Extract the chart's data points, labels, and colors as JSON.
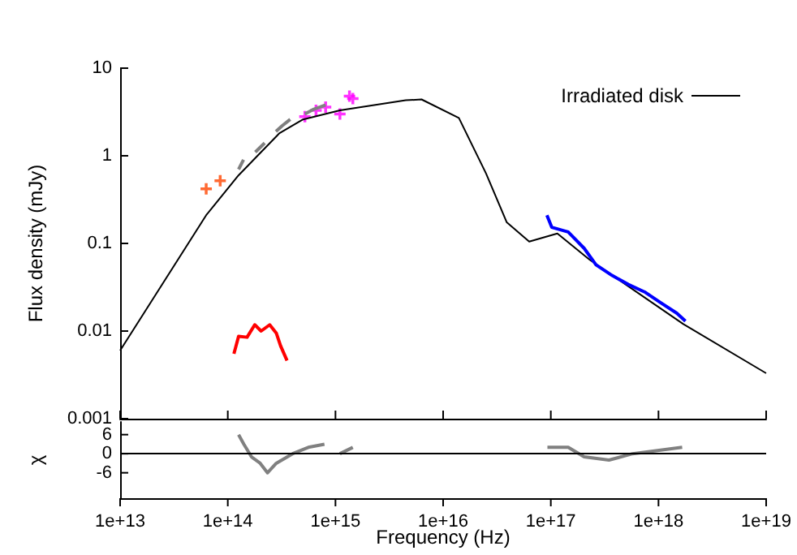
{
  "chart_data": [
    {
      "type": "line",
      "ylabel": "Flux density (mJy)",
      "log": "xy",
      "legend": "top right",
      "grid": false,
      "tick_labels": "y",
      "xlim": [
        10000000000000.0,
        1e+19
      ],
      "xticks": [
        {
          "value": 10000000000000.0,
          "label": null
        },
        {
          "value": 100000000000000.0,
          "label": null
        },
        {
          "value": 1000000000000000.0,
          "label": null
        },
        {
          "value": 1e+16,
          "label": null
        },
        {
          "value": 1e+17,
          "label": null
        },
        {
          "value": 1e+18,
          "label": null
        },
        {
          "value": 1e+19,
          "label": null
        }
      ],
      "ylim": [
        0.001,
        10
      ],
      "yticks": [
        0.001,
        0.01,
        0.1,
        1,
        10
      ],
      "series": [
        {
          "name": "Irradiated disk",
          "marker": "none",
          "line_style": "solid",
          "color": "#000000",
          "x": [
            10000000000000.0,
            63000000000000.0,
            126000000000000.0,
            300000000000000.0,
            500000000000000.0,
            1100000000000000.0,
            4500000000000000.0,
            6300000000000000.0,
            1.4e+16,
            2.5e+16,
            3.9e+16,
            6.3e+16,
            1.15e+17,
            2.3e+17,
            1.7e+18,
            1e+19
          ],
          "values": [
            0.006,
            0.21,
            0.6,
            1.8,
            2.6,
            3.3,
            4.3,
            4.4,
            2.7,
            0.63,
            0.174,
            0.105,
            0.13,
            0.065,
            0.012,
            0.0033
          ]
        },
        {
          "type": "line",
          "marker": "none",
          "line_style": "solid",
          "color": "#808080",
          "x": [
            126000000000000.0,
            140000000000000.0
          ],
          "values": [
            0.7,
            0.9
          ]
        },
        {
          "type": "line",
          "marker": "none",
          "line_style": "solid",
          "color": "#808080",
          "x": [
            180000000000000.0,
            220000000000000.0
          ],
          "values": [
            1.1,
            1.4
          ]
        },
        {
          "type": "line",
          "marker": "none",
          "line_style": "solid",
          "color": "#7f7f7f",
          "x": [
            280000000000000.0,
            320000000000000.0,
            380000000000000.0
          ],
          "values": [
            1.9,
            2.2,
            2.6
          ]
        },
        {
          "type": "line",
          "marker": "none",
          "line_style": "solid",
          "color": "#818181",
          "x": [
            520000000000000.0,
            630000000000000.0,
            720000000000000.0,
            810000000000000.0
          ],
          "values": [
            3.0,
            3.4,
            3.6,
            3.8
          ]
        },
        {
          "marker": "none",
          "line_style": "solid",
          "color": "#ff0000",
          "x": [
            114000000000000.0,
            126000000000000.0,
            151000000000000.0,
            178000000000000.0,
            204000000000000.0,
            245000000000000.0,
            282000000000000.0,
            309000000000000.0,
            355000000000000.0
          ],
          "values": [
            0.0055,
            0.0087,
            0.0085,
            0.0118,
            0.01,
            0.0118,
            0.0095,
            0.0068,
            0.0046
          ]
        },
        {
          "marker": "none",
          "line_style": "solid",
          "color": "#0000ff",
          "x": [
            9.2e+16,
            1.02e+17,
            1.45e+17,
            2.04e+17,
            2.63e+17,
            3.72e+17,
            5.25e+17,
            7.41e+17,
            1.05e+18,
            1.48e+18,
            1.78e+18
          ],
          "values": [
            0.21,
            0.153,
            0.135,
            0.088,
            0.057,
            0.043,
            0.034,
            0.028,
            0.021,
            0.016,
            0.013
          ]
        },
        {
          "type": "scatter",
          "marker": "cross",
          "color": "#ff4500",
          "x": [
            63000000000000.0,
            85000000000000.0
          ],
          "values": [
            0.42,
            0.52
          ]
        },
        {
          "type": "scatter",
          "marker": "cross",
          "color": "#ff00ff",
          "x": [
            520000000000000.0,
            660000000000000.0,
            810000000000000.0,
            1100000000000000.0,
            1350000000000000.0,
            1450000000000000.0
          ],
          "values": [
            2.8,
            3.3,
            3.6,
            3.0,
            4.8,
            4.5
          ]
        }
      ]
    },
    {
      "type": "line",
      "xlabel": "Frequency (Hz)",
      "ylabel": "χ",
      "log": "x",
      "legend": false,
      "grid": false,
      "xlim": [
        10000000000000.0,
        1e+19
      ],
      "xticks": [
        {
          "value": 10000000000000.0,
          "label": "1e+13"
        },
        {
          "value": 100000000000000.0,
          "label": "1e+14"
        },
        {
          "value": 1000000000000000.0,
          "label": "1e+15"
        },
        {
          "value": 1e+16,
          "label": "1e+16"
        },
        {
          "value": 1e+17,
          "label": "1e+17"
        },
        {
          "value": 1e+18,
          "label": "1e+18"
        },
        {
          "value": 1e+19,
          "label": "1e+19"
        }
      ],
      "ylim": [
        -14,
        10
      ],
      "yticks": [
        -6,
        0,
        6
      ],
      "ref_lines": [
        {
          "axis": "y",
          "value": 0,
          "color": "#000000"
        }
      ],
      "series": [
        {
          "marker": "none",
          "line_style": "solid",
          "color": "#808080",
          "x": [
            126000000000000.0,
            141000000000000.0,
            166000000000000.0,
            200000000000000.0,
            234000000000000.0,
            282000000000000.0,
            400000000000000.0,
            560000000000000.0,
            790000000000000.0,
            900000000000000.0,
            1100000000000000.0,
            1450000000000000.0,
            9e+16,
            9.3e+16,
            1.45e+17,
            2.04e+17,
            3.47e+17,
            5.75e+17,
            9.8e+17,
            1.66e+18
          ],
          "values": [
            6,
            3,
            -1,
            -3,
            -6,
            -3,
            0,
            2,
            3,
            null,
            0,
            2,
            null,
            2,
            2,
            -1,
            -2,
            0,
            1,
            2
          ]
        }
      ]
    }
  ]
}
